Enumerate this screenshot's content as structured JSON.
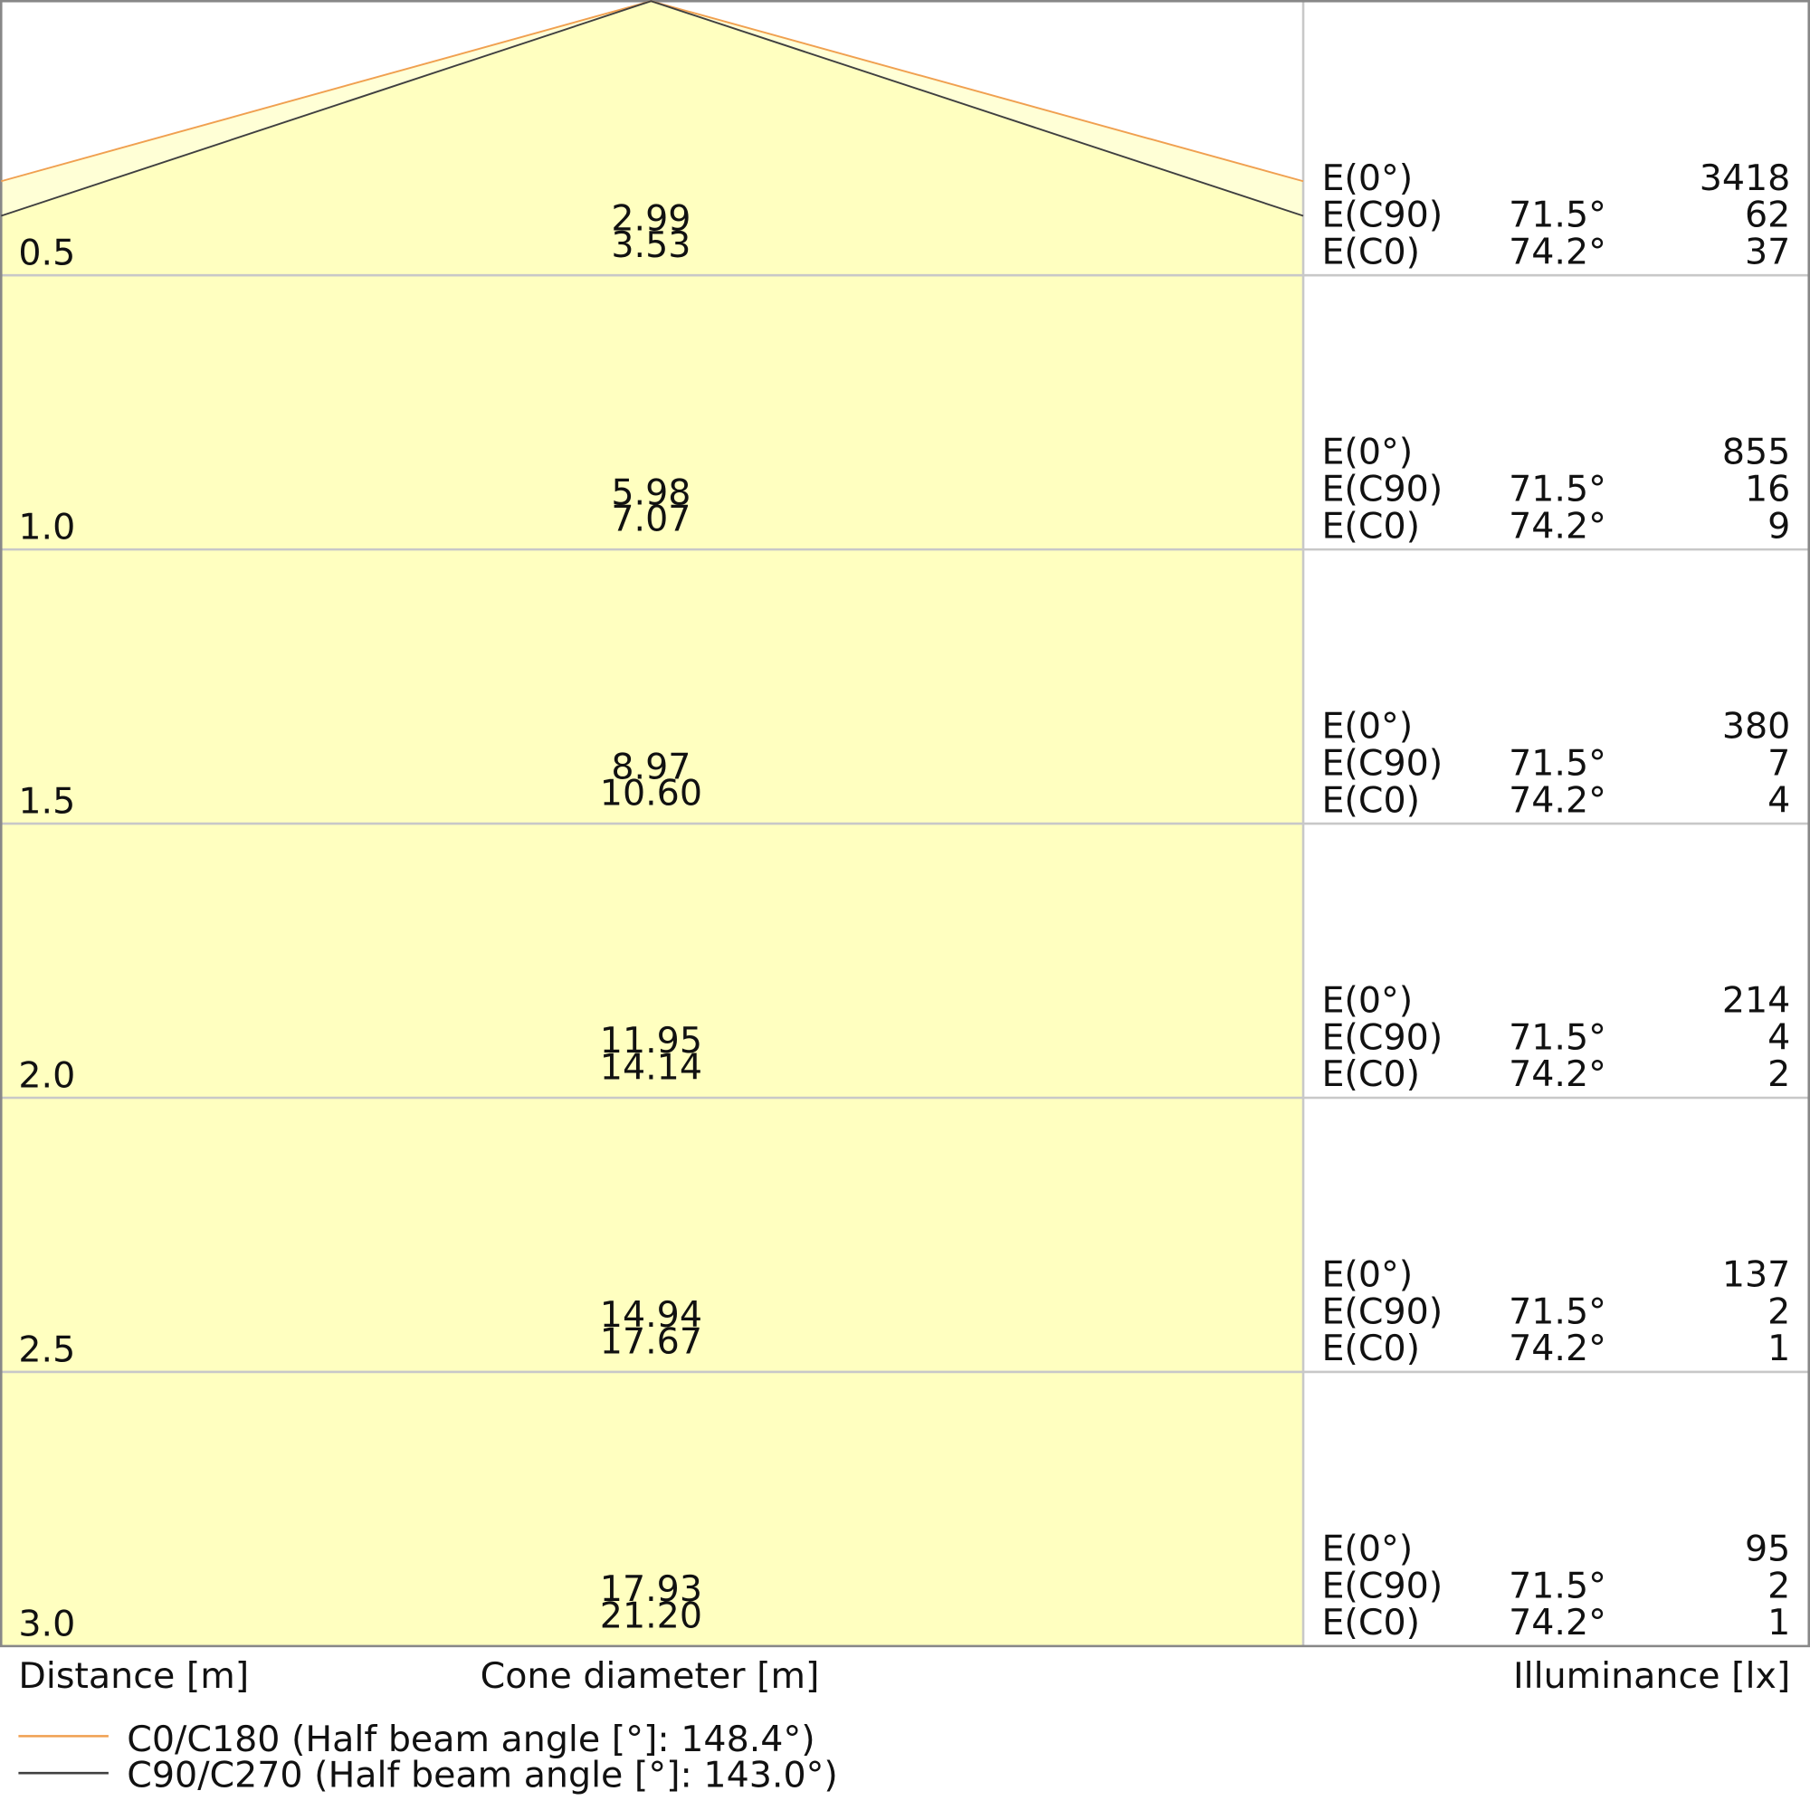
{
  "rows": [
    {
      "distance": "0.5",
      "cone_c90": "2.99",
      "cone_c0": "3.53",
      "e0": "3418",
      "ec90": "62",
      "ec0": "37"
    },
    {
      "distance": "1.0",
      "cone_c90": "5.98",
      "cone_c0": "7.07",
      "e0": "855",
      "ec90": "16",
      "ec0": "9"
    },
    {
      "distance": "1.5",
      "cone_c90": "8.97",
      "cone_c0": "10.60",
      "e0": "380",
      "ec90": "7",
      "ec0": "4"
    },
    {
      "distance": "2.0",
      "cone_c90": "11.95",
      "cone_c0": "14.14",
      "e0": "214",
      "ec90": "4",
      "ec0": "2"
    },
    {
      "distance": "2.5",
      "cone_c90": "14.94",
      "cone_c0": "17.67",
      "e0": "137",
      "ec90": "2",
      "ec0": "1"
    },
    {
      "distance": "3.0",
      "cone_c90": "17.93",
      "cone_c0": "21.20",
      "e0": "95",
      "ec90": "2",
      "ec0": "1"
    }
  ],
  "illuminance_labels": {
    "e0": "E(0°)",
    "ec90": "E(C90)",
    "ec0": "E(C0)"
  },
  "angles": {
    "ec90": "71.5°",
    "ec0": "74.2°"
  },
  "axis_labels": {
    "distance": "Distance [m]",
    "cone": "Cone diameter [m]",
    "illuminance": "Illuminance [lx]"
  },
  "legend": [
    {
      "name": "C0/C180 (Half beam angle [°]: 148.4°)",
      "color": "#f0a050"
    },
    {
      "name": "C90/C270 (Half beam angle [°]: 143.0°)",
      "color": "#404040"
    }
  ]
}
